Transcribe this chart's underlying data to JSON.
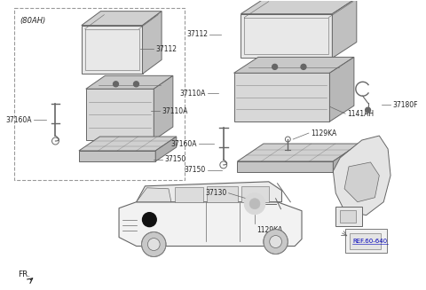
{
  "bg_color": "#ffffff",
  "line_color": "#666666",
  "text_color": "#222222",
  "dashed_color": "#999999",
  "label_80AH": "(80AH)",
  "label_FR": "FR.",
  "ref_label": "REF.60-640",
  "figsize": [
    4.8,
    3.27
  ],
  "dpi": 100
}
